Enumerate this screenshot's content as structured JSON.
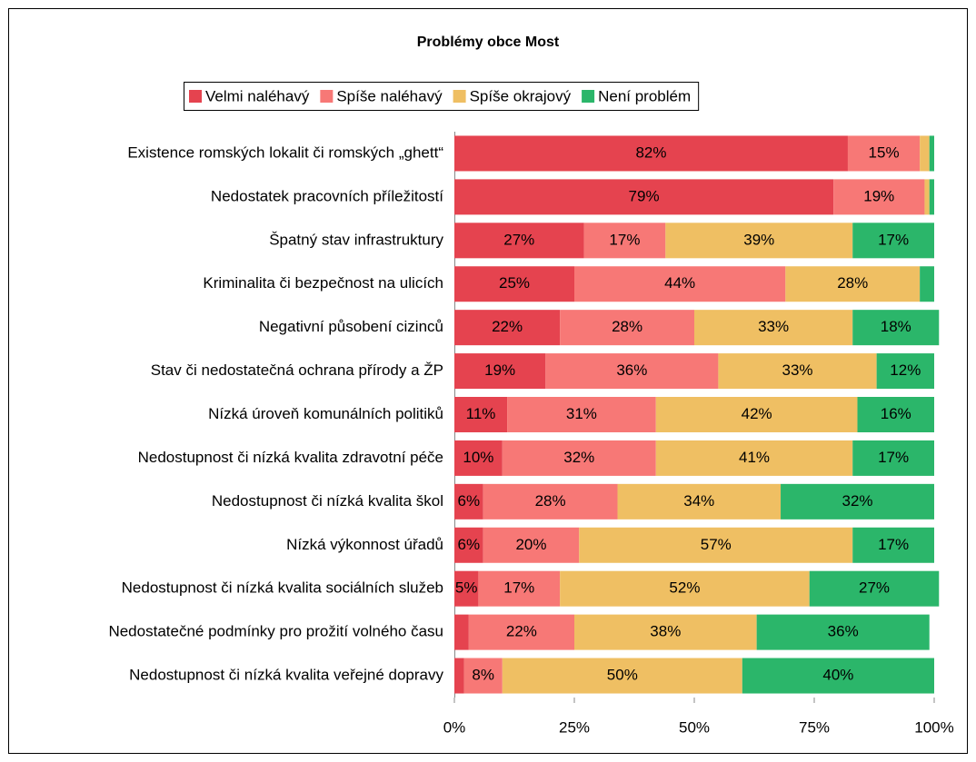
{
  "chart_data": {
    "type": "stacked-bar-horizontal",
    "title": "Problémy obce Most",
    "categories": [
      "Existence romských lokalit či romských „ghett“",
      "Nedostatek pracovních příležitostí",
      "Špatný stav infrastruktury",
      "Kriminalita či bezpečnost na ulicích",
      "Negativní působení cizinců",
      "Stav či nedostatečná ochrana přírody a ŽP",
      "Nízká úroveň komunálních politiků",
      "Nedostupnost či nízká kvalita zdravotní péče",
      "Nedostupnost či nízká kvalita škol",
      "Nízká výkonnost úřadů",
      "Nedostupnost či nízká kvalita sociálních služeb",
      "Nedostatečné podmínky pro prožití volného času",
      "Nedostupnost či nízká kvalita veřejné dopravy"
    ],
    "series": [
      {
        "name": "Velmi naléhavý",
        "color": "#e5434f",
        "values": [
          82,
          79,
          27,
          25,
          22,
          19,
          11,
          10,
          6,
          6,
          5,
          3,
          2
        ],
        "value_labels": [
          "82%",
          "79%",
          "27%",
          "25%",
          "22%",
          "19%",
          "11%",
          "10%",
          "6%",
          "6%",
          "5%",
          null,
          null
        ]
      },
      {
        "name": "Spíše naléhavý",
        "color": "#f77876",
        "values": [
          15,
          19,
          17,
          44,
          28,
          36,
          31,
          32,
          28,
          20,
          17,
          22,
          8
        ],
        "value_labels": [
          "15%",
          "19%",
          "17%",
          "44%",
          "28%",
          "36%",
          "31%",
          "32%",
          "28%",
          "20%",
          "17%",
          "22%",
          "8%"
        ]
      },
      {
        "name": "Spíše okrajový",
        "color": "#efbf63",
        "values": [
          2,
          1,
          39,
          28,
          33,
          33,
          42,
          41,
          34,
          57,
          52,
          38,
          50
        ],
        "value_labels": [
          null,
          null,
          "39%",
          "28%",
          "33%",
          "33%",
          "42%",
          "41%",
          "34%",
          "57%",
          "52%",
          "38%",
          "50%"
        ]
      },
      {
        "name": "Není problém",
        "color": "#2bb66a",
        "values": [
          1,
          1,
          17,
          3,
          18,
          12,
          16,
          17,
          32,
          17,
          27,
          36,
          40
        ],
        "value_labels": [
          null,
          null,
          "17%",
          null,
          "18%",
          "12%",
          "16%",
          "17%",
          "32%",
          "17%",
          "27%",
          "36%",
          "40%"
        ]
      }
    ],
    "xlim": [
      0,
      100
    ],
    "xticks": [
      {
        "value": 0,
        "label": "0%"
      },
      {
        "value": 25,
        "label": "25%"
      },
      {
        "value": 50,
        "label": "50%"
      },
      {
        "value": 75,
        "label": "75%"
      },
      {
        "value": 100,
        "label": "100%"
      }
    ]
  }
}
